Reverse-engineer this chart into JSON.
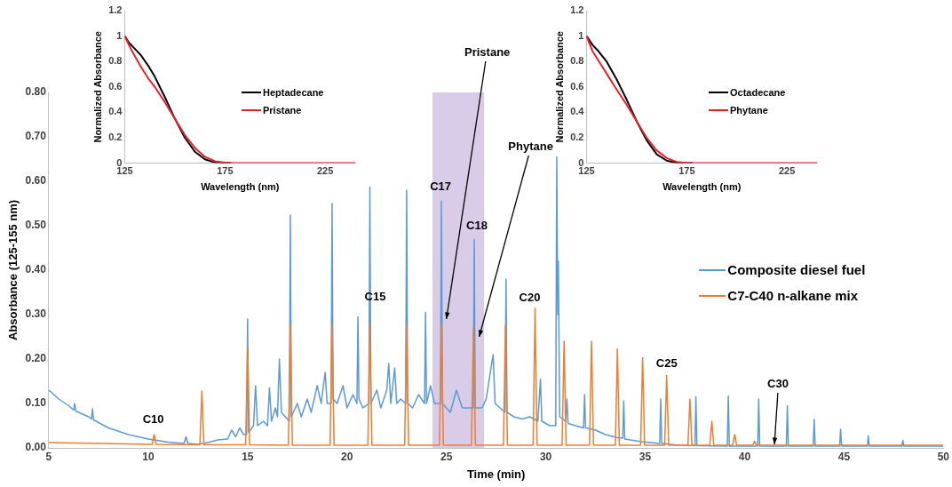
{
  "chart_data": [
    {
      "type": "line",
      "xlabel": "Time (min)",
      "ylabel": "Absorbance (125-155 nm)",
      "xlim": [
        5,
        50
      ],
      "xticks": [
        5,
        10,
        15,
        20,
        25,
        30,
        35,
        40,
        45,
        50
      ],
      "ylim": [
        0,
        0.8
      ],
      "yticks": [
        {
          "value": 0,
          "label": "0.00"
        },
        {
          "value": 0.1,
          "label": "0.10"
        },
        {
          "value": 0.2,
          "label": "0.20"
        },
        {
          "value": 0.3,
          "label": "0.30"
        },
        {
          "value": 0.4,
          "label": "0.40"
        },
        {
          "value": 0.5,
          "label": "0.50"
        },
        {
          "value": 0.6,
          "label": "0.60"
        },
        {
          "value": 0.7,
          "label": "0.70"
        },
        {
          "value": 0.8,
          "label": "0.80"
        }
      ],
      "legend": "right",
      "bands": [
        {
          "axis": "x",
          "from": 24.3,
          "to": 26.9,
          "color": "#d9cce8"
        }
      ],
      "series": [
        {
          "name": "Composite diesel fuel",
          "color": "#5b9bd5",
          "x": [
            5,
            5.5,
            6,
            6.25,
            6.3,
            6.35,
            7,
            7.15,
            7.2,
            7.25,
            8,
            9,
            10,
            11,
            11.8,
            11.9,
            12,
            12.5,
            13,
            13.5,
            14,
            14.2,
            14.4,
            14.6,
            14.8,
            14.95,
            15.0,
            15.05,
            15.3,
            15.4,
            15.5,
            15.8,
            16.0,
            16.1,
            16.2,
            16.4,
            16.5,
            16.6,
            16.7,
            16.9,
            17.1,
            17.15,
            17.2,
            17.5,
            17.7,
            18.0,
            18.2,
            18.5,
            18.7,
            18.9,
            19.0,
            19.2,
            19.25,
            19.3,
            19.5,
            19.8,
            20.0,
            20.3,
            20.5,
            20.55,
            20.6,
            20.8,
            21.1,
            21.15,
            21.2,
            21.5,
            21.7,
            22.0,
            22.1,
            22.2,
            22.4,
            22.5,
            22.7,
            22.95,
            23.0,
            23.05,
            23.3,
            23.6,
            23.9,
            23.95,
            24.0,
            24.2,
            24.4,
            24.7,
            24.75,
            24.8,
            25.0,
            25.2,
            25.5,
            25.8,
            26.1,
            26.35,
            26.4,
            26.45,
            26.8,
            27.0,
            27.35,
            27.45,
            27.7,
            27.95,
            28.0,
            28.05,
            28.4,
            28.8,
            29.2,
            29.6,
            29.73,
            29.8,
            30.2,
            30.5,
            30.55,
            30.6,
            30.63,
            30.7,
            31.0,
            31.06,
            31.12,
            31.5,
            31.9,
            31.95,
            32.0,
            32.5,
            33.0,
            33.6,
            33.87,
            33.92,
            33.97,
            34.8,
            35.73,
            35.78,
            35.83,
            36.7,
            37.5,
            37.55,
            37.6,
            39.13,
            39.18,
            39.23,
            40.66,
            40.71,
            40.76,
            42.1,
            42.15,
            42.2,
            43.45,
            43.5,
            43.55,
            44.78,
            44.83,
            44.88,
            46.17,
            46.22,
            46.27,
            47.91,
            47.96,
            48.01,
            50
          ],
          "values": [
            0.13,
            0.11,
            0.095,
            0.085,
            0.1,
            0.083,
            0.07,
            0.065,
            0.088,
            0.063,
            0.045,
            0.03,
            0.02,
            0.013,
            0.01,
            0.025,
            0.01,
            0.008,
            0.012,
            0.018,
            0.02,
            0.04,
            0.025,
            0.045,
            0.03,
            0.03,
            0.29,
            0.035,
            0.05,
            0.14,
            0.05,
            0.06,
            0.05,
            0.135,
            0.06,
            0.09,
            0.07,
            0.2,
            0.08,
            0.07,
            0.06,
            0.524,
            0.07,
            0.1,
            0.07,
            0.11,
            0.08,
            0.14,
            0.1,
            0.17,
            0.1,
            0.1,
            0.55,
            0.11,
            0.1,
            0.14,
            0.09,
            0.12,
            0.1,
            0.295,
            0.11,
            0.09,
            0.1,
            0.587,
            0.1,
            0.13,
            0.09,
            0.13,
            0.19,
            0.1,
            0.18,
            0.1,
            0.11,
            0.1,
            0.58,
            0.1,
            0.09,
            0.12,
            0.1,
            0.305,
            0.1,
            0.14,
            0.1,
            0.1,
            0.555,
            0.1,
            0.09,
            0.08,
            0.13,
            0.09,
            0.09,
            0.09,
            0.47,
            0.09,
            0.09,
            0.11,
            0.21,
            0.1,
            0.09,
            0.08,
            0.38,
            0.08,
            0.07,
            0.065,
            0.07,
            0.06,
            0.155,
            0.06,
            0.05,
            0.05,
            0.655,
            0.3,
            0.42,
            0.07,
            0.06,
            0.11,
            0.055,
            0.05,
            0.045,
            0.12,
            0.045,
            0.04,
            0.03,
            0.023,
            0.022,
            0.106,
            0.02,
            0.014,
            0.01,
            0.11,
            0.01,
            0.006,
            0.005,
            0.115,
            0.005,
            0.004,
            0.117,
            0.004,
            0.004,
            0.11,
            0.004,
            0.004,
            0.095,
            0.004,
            0.004,
            0.064,
            0.004,
            0.004,
            0.042,
            0.004,
            0.004,
            0.027,
            0.004,
            0.004,
            0.017,
            0.004,
            0.004
          ]
        },
        {
          "name": "C7-C40 n-alkane mix",
          "color": "#ed7d31",
          "x": [
            5,
            10.2,
            10.3,
            10.4,
            12.6,
            12.7,
            12.8,
            14.9,
            15.0,
            15.1,
            17.05,
            17.15,
            17.25,
            19.15,
            19.25,
            19.35,
            21.05,
            21.15,
            21.25,
            22.9,
            23.0,
            23.1,
            24.65,
            24.75,
            24.85,
            26.26,
            26.36,
            26.46,
            27.87,
            27.97,
            28.07,
            29.36,
            29.46,
            29.56,
            30.82,
            30.92,
            31.02,
            32.2,
            32.3,
            32.4,
            33.5,
            33.6,
            33.7,
            34.77,
            34.87,
            34.97,
            35.98,
            36.08,
            36.18,
            37.15,
            37.25,
            37.35,
            38.25,
            38.35,
            38.45,
            39.4,
            39.5,
            39.6,
            40.4,
            40.5,
            40.6,
            50
          ],
          "values": [
            0.012,
            0.008,
            0.03,
            0.008,
            0.007,
            0.128,
            0.007,
            0.007,
            0.228,
            0.007,
            0.006,
            0.278,
            0.006,
            0.006,
            0.278,
            0.006,
            0.006,
            0.278,
            0.006,
            0.006,
            0.278,
            0.006,
            0.006,
            0.278,
            0.006,
            0.006,
            0.27,
            0.006,
            0.006,
            0.277,
            0.006,
            0.006,
            0.314,
            0.006,
            0.006,
            0.24,
            0.006,
            0.006,
            0.24,
            0.006,
            0.006,
            0.223,
            0.006,
            0.006,
            0.203,
            0.006,
            0.006,
            0.163,
            0.006,
            0.006,
            0.11,
            0.006,
            0.006,
            0.06,
            0.006,
            0.006,
            0.03,
            0.006,
            0.006,
            0.015,
            0.006,
            0.006
          ]
        }
      ],
      "annotations": [
        {
          "text": "C10",
          "x": 10.3,
          "y": 0.03
        },
        {
          "text": "C15",
          "x": 21.15,
          "y": 0.278
        },
        {
          "text": "C17",
          "x": 24.75,
          "y": 0.555
        },
        {
          "text": "C18",
          "x": 26.4,
          "y": 0.47
        },
        {
          "text": "C20",
          "x": 29.46,
          "y": 0.314
        },
        {
          "text": "C25",
          "x": 36.08,
          "y": 0.163
        },
        {
          "text": "Pristane",
          "x": 25.0,
          "y": 0.29
        },
        {
          "text": "Phytane",
          "x": 26.65,
          "y": 0.25
        },
        {
          "text": "C30",
          "x": 41.5,
          "y": 0.008
        }
      ]
    },
    {
      "type": "line",
      "xlabel": "Wavelength (nm)",
      "ylabel": "Normalized Absorbance",
      "xlim": [
        125,
        240
      ],
      "xticks": [
        125,
        175,
        225
      ],
      "ylim": [
        0,
        1.2
      ],
      "yticks": [
        0,
        0.2,
        0.4,
        0.6,
        0.8,
        1,
        1.2
      ],
      "legend": "right",
      "series": [
        {
          "name": "Heptadecane",
          "color": "#000000",
          "x": [
            125,
            127,
            130,
            133,
            137,
            140,
            145,
            150,
            155,
            160,
            165,
            170,
            175,
            178
          ],
          "values": [
            1.0,
            0.95,
            0.9,
            0.85,
            0.76,
            0.68,
            0.52,
            0.35,
            0.2,
            0.09,
            0.03,
            0.005,
            0,
            0
          ]
        },
        {
          "name": "Pristane",
          "color": "#e8202a",
          "x": [
            125,
            128,
            133,
            137,
            140,
            145,
            150,
            155,
            160,
            165,
            170,
            175,
            180,
            240
          ],
          "values": [
            1.0,
            0.9,
            0.76,
            0.66,
            0.6,
            0.48,
            0.35,
            0.22,
            0.12,
            0.05,
            0.015,
            0.005,
            0,
            0
          ]
        }
      ]
    },
    {
      "type": "line",
      "xlabel": "Wavelength (nm)",
      "ylabel": "Normalized Absorbance",
      "xlim": [
        125,
        240
      ],
      "xticks": [
        125,
        175,
        225
      ],
      "ylim": [
        0,
        1.2
      ],
      "yticks": [
        0,
        0.2,
        0.4,
        0.6,
        0.8,
        1,
        1.2
      ],
      "legend": "right",
      "series": [
        {
          "name": "Octadecane",
          "color": "#000000",
          "x": [
            125,
            128,
            131,
            135,
            140,
            145,
            150,
            155,
            160,
            165,
            170,
            175,
            178
          ],
          "values": [
            1.0,
            0.93,
            0.88,
            0.8,
            0.66,
            0.5,
            0.33,
            0.18,
            0.07,
            0.02,
            0.003,
            0,
            0
          ]
        },
        {
          "name": "Phytane",
          "color": "#e8202a",
          "x": [
            125,
            128,
            132,
            136,
            140,
            145,
            150,
            155,
            160,
            165,
            170,
            175,
            180,
            240
          ],
          "values": [
            1.0,
            0.88,
            0.78,
            0.68,
            0.58,
            0.46,
            0.33,
            0.2,
            0.1,
            0.04,
            0.01,
            0.003,
            0,
            0
          ]
        }
      ]
    }
  ]
}
